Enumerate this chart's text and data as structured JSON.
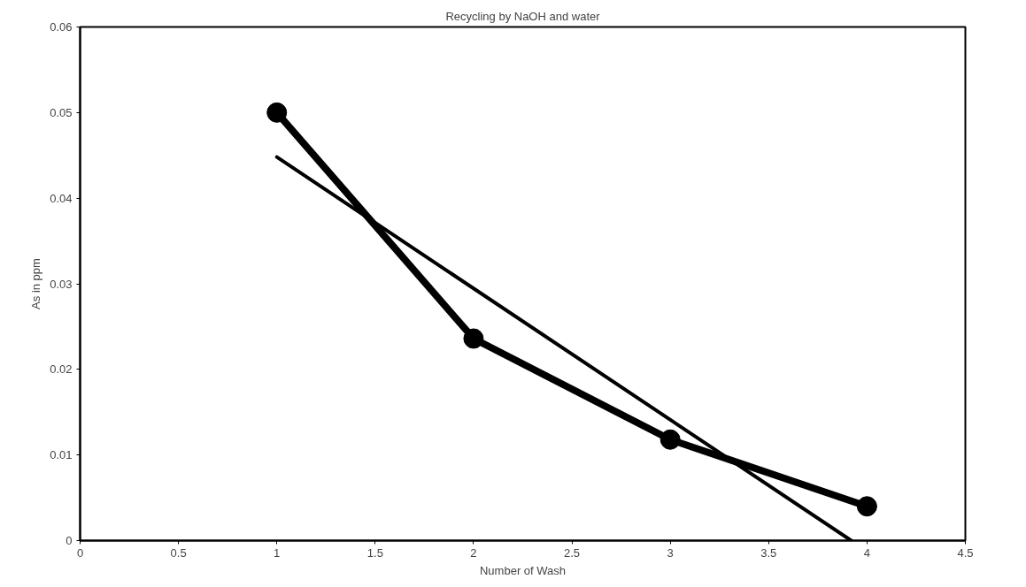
{
  "chart_data": {
    "type": "line",
    "title": "Recycling by NaOH and water",
    "xlabel": "Number of Wash",
    "ylabel": "As in ppm",
    "x": [
      1,
      2,
      3,
      4
    ],
    "series": [
      {
        "color": "#000000",
        "values": [
          0.05,
          0.0236,
          0.0118,
          0.004
        ],
        "marker": "circle"
      },
      {
        "type": "line",
        "color": "#000000",
        "x": [
          1,
          3.92
        ],
        "values": [
          0.0448,
          0
        ],
        "marker": "none"
      }
    ],
    "xlim": [
      0,
      4.5
    ],
    "xticks": [
      0,
      0.5,
      1,
      1.5,
      2,
      2.5,
      3,
      3.5,
      4,
      4.5
    ],
    "ylim": [
      0,
      0.06
    ],
    "yticks": [
      0,
      0.01,
      0.02,
      0.03,
      0.04,
      0.05,
      0.06
    ],
    "grid": false
  }
}
